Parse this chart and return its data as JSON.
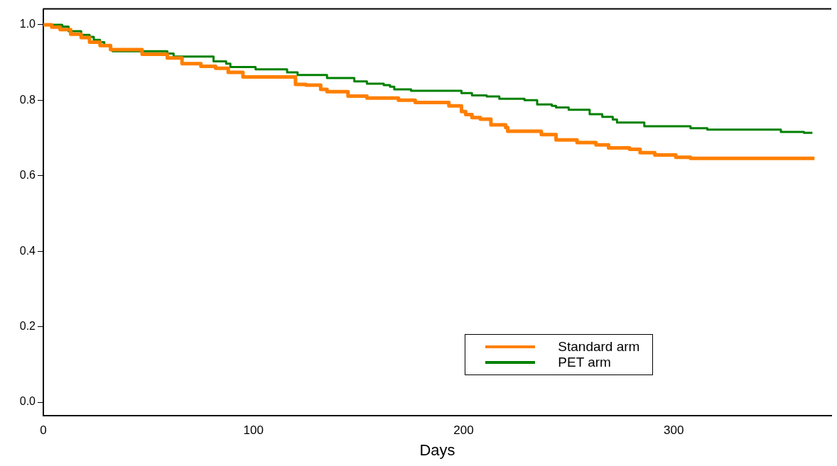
{
  "chart_data": {
    "type": "step",
    "xlabel": "Days",
    "xlim": [
      0,
      375
    ],
    "xticks": [
      0,
      100,
      200,
      300
    ],
    "ylim": [
      -0.036,
      1.042
    ],
    "yticks": [
      {
        "value": 0,
        "label": "0.0"
      },
      0.2,
      0.4,
      0.6,
      0.8,
      {
        "value": 1,
        "label": "1.0"
      }
    ],
    "grid": false,
    "legend": "bottom right",
    "marker": "none",
    "series": [
      {
        "name": "Standard arm",
        "color": "#ff7f00",
        "x": [
          0,
          4,
          8,
          13,
          18,
          22,
          27,
          32,
          47,
          59,
          66,
          75,
          82,
          88,
          95,
          120,
          125,
          132,
          135,
          145,
          154,
          169,
          177,
          193,
          199,
          201,
          204,
          208,
          213,
          220,
          221,
          237,
          240,
          244,
          253,
          254,
          263,
          269,
          279,
          284,
          291,
          301,
          308,
          340,
          367
        ],
        "values": [
          1.0,
          0.994,
          0.987,
          0.975,
          0.966,
          0.954,
          0.945,
          0.934,
          0.922,
          0.912,
          0.897,
          0.89,
          0.885,
          0.874,
          0.862,
          0.842,
          0.84,
          0.829,
          0.823,
          0.811,
          0.806,
          0.8,
          0.794,
          0.785,
          0.77,
          0.762,
          0.754,
          0.75,
          0.735,
          0.728,
          0.718,
          0.709,
          0.709,
          0.695,
          0.695,
          0.688,
          0.682,
          0.674,
          0.67,
          0.661,
          0.655,
          0.649,
          0.646,
          0.646,
          0.646
        ]
      },
      {
        "name": "PET arm",
        "color": "#008000",
        "x": [
          0,
          9,
          12,
          18,
          22,
          24,
          27,
          29,
          32,
          33,
          59,
          62,
          81,
          87,
          89,
          101,
          116,
          121,
          135,
          148,
          154,
          162,
          165,
          167,
          175,
          199,
          204,
          211,
          217,
          229,
          235,
          242,
          244,
          250,
          260,
          266,
          271,
          273,
          286,
          308,
          316,
          351,
          362,
          366
        ],
        "values": [
          1.0,
          0.995,
          0.983,
          0.973,
          0.968,
          0.96,
          0.954,
          0.945,
          0.935,
          0.93,
          0.924,
          0.916,
          0.903,
          0.897,
          0.888,
          0.882,
          0.874,
          0.867,
          0.859,
          0.85,
          0.844,
          0.84,
          0.836,
          0.829,
          0.825,
          0.819,
          0.813,
          0.81,
          0.804,
          0.8,
          0.789,
          0.785,
          0.781,
          0.775,
          0.763,
          0.756,
          0.749,
          0.741,
          0.731,
          0.726,
          0.722,
          0.716,
          0.714,
          0.714
        ]
      }
    ]
  }
}
